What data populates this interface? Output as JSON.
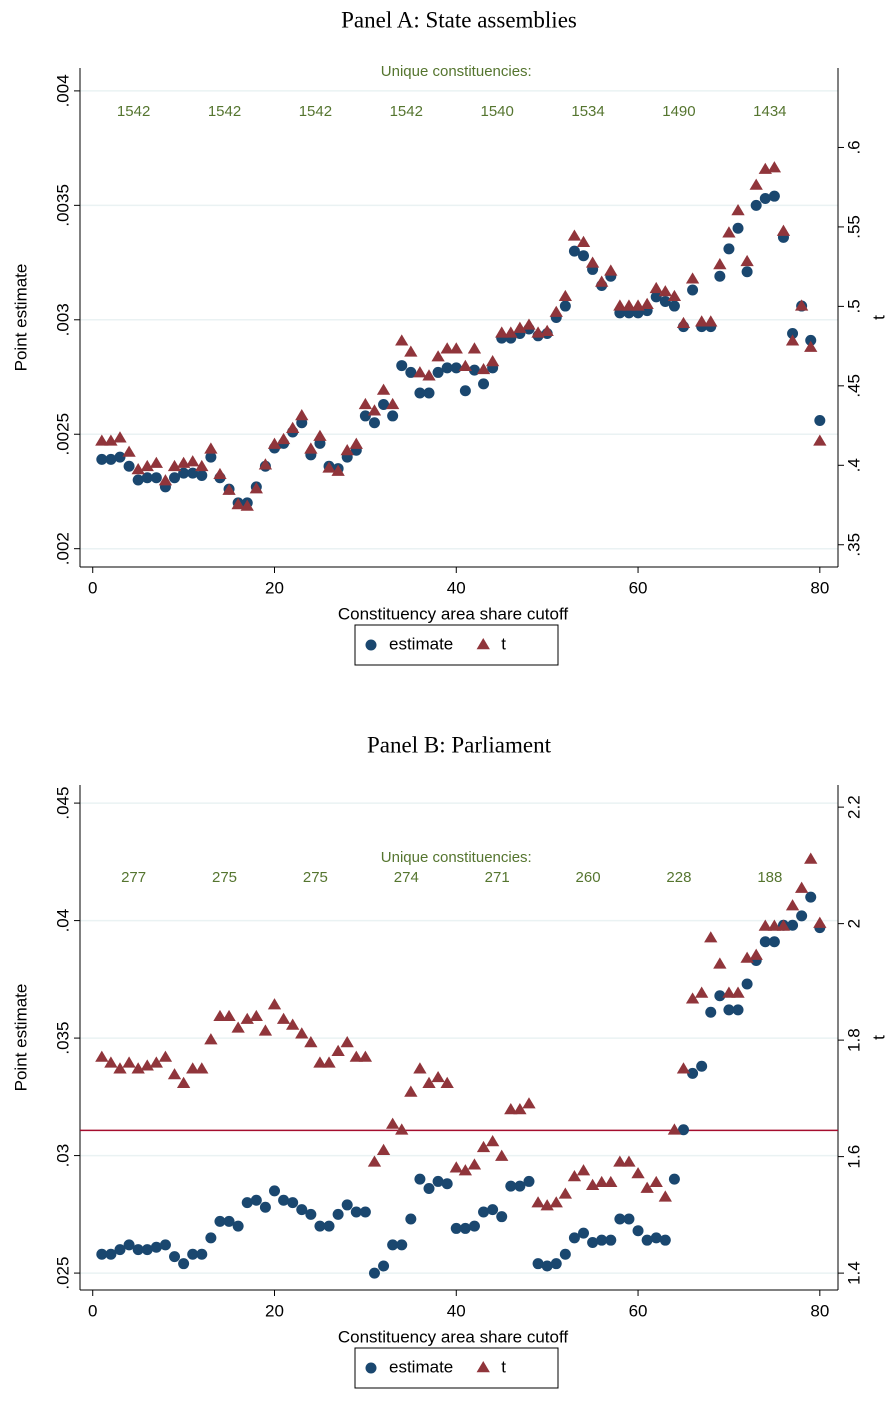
{
  "chart_data": [
    {
      "type": "scatter",
      "title": "Panel A: State assemblies",
      "xlabel": "Constituency area share cutoff",
      "ylabel": "Point estimate",
      "y2label": "t",
      "annotation_title": "Unique constituencies:",
      "annotation_labels": [
        "1542",
        "1542",
        "1542",
        "1542",
        "1540",
        "1534",
        "1490",
        "1434"
      ],
      "x": [
        1,
        2,
        3,
        4,
        5,
        6,
        7,
        8,
        9,
        10,
        11,
        12,
        13,
        14,
        15,
        16,
        17,
        18,
        19,
        20,
        21,
        22,
        23,
        24,
        25,
        26,
        27,
        28,
        29,
        30,
        31,
        32,
        33,
        34,
        35,
        36,
        37,
        38,
        39,
        40,
        41,
        42,
        43,
        44,
        45,
        46,
        47,
        48,
        49,
        50,
        51,
        52,
        53,
        54,
        55,
        56,
        57,
        58,
        59,
        60,
        61,
        62,
        63,
        64,
        65,
        66,
        67,
        68,
        69,
        70,
        71,
        72,
        73,
        74,
        75,
        76,
        77,
        78,
        79,
        80
      ],
      "series": [
        {
          "name": "estimate",
          "color": "#1a476f",
          "marker": "circle",
          "values": [
            0.00239,
            0.00239,
            0.0024,
            0.00236,
            0.0023,
            0.00231,
            0.00231,
            0.00227,
            0.00231,
            0.00233,
            0.00233,
            0.00232,
            0.0024,
            0.00231,
            0.00226,
            0.0022,
            0.0022,
            0.00227,
            0.00236,
            0.00244,
            0.00246,
            0.00251,
            0.00255,
            0.00241,
            0.00246,
            0.00236,
            0.00235,
            0.0024,
            0.00243,
            0.00258,
            0.00255,
            0.00263,
            0.00258,
            0.0028,
            0.00277,
            0.00268,
            0.00268,
            0.00277,
            0.00279,
            0.00279,
            0.00269,
            0.00278,
            0.00272,
            0.00279,
            0.00292,
            0.00292,
            0.00294,
            0.00296,
            0.00293,
            0.00294,
            0.00301,
            0.00306,
            0.0033,
            0.00328,
            0.00322,
            0.00315,
            0.00319,
            0.00303,
            0.00303,
            0.00303,
            0.00304,
            0.0031,
            0.00308,
            0.00306,
            0.00297,
            0.00313,
            0.00297,
            0.00297,
            0.00319,
            0.00331,
            0.0034,
            0.00321,
            0.0035,
            0.00353,
            0.00354,
            0.00336,
            0.00294,
            0.00306,
            0.00291,
            0.00256
          ]
        },
        {
          "name": "t",
          "color": "#90353b",
          "marker": "triangle",
          "axis": "y2",
          "values": [
            0.415,
            0.415,
            0.417,
            0.408,
            0.397,
            0.399,
            0.401,
            0.39,
            0.399,
            0.401,
            0.402,
            0.399,
            0.41,
            0.394,
            0.384,
            0.375,
            0.374,
            0.385,
            0.4,
            0.413,
            0.416,
            0.423,
            0.431,
            0.41,
            0.418,
            0.398,
            0.396,
            0.409,
            0.413,
            0.438,
            0.434,
            0.447,
            0.438,
            0.478,
            0.471,
            0.458,
            0.456,
            0.468,
            0.473,
            0.473,
            0.462,
            0.473,
            0.46,
            0.465,
            0.483,
            0.483,
            0.486,
            0.488,
            0.483,
            0.484,
            0.496,
            0.506,
            0.544,
            0.54,
            0.527,
            0.515,
            0.522,
            0.5,
            0.5,
            0.5,
            0.501,
            0.511,
            0.509,
            0.506,
            0.489,
            0.517,
            0.49,
            0.49,
            0.526,
            0.546,
            0.56,
            0.528,
            0.576,
            0.586,
            0.587,
            0.547,
            0.478,
            0.5,
            0.474,
            0.415
          ]
        }
      ],
      "xlim": [
        -1.4,
        82
      ],
      "xticks": [
        0,
        20,
        40,
        60,
        80
      ],
      "ylim": [
        0.00192,
        0.0041
      ],
      "yticks": [
        {
          "value": 0.002,
          "label": ".002"
        },
        {
          "value": 0.0025,
          "label": ".0025"
        },
        {
          "value": 0.003,
          "label": ".003"
        },
        {
          "value": 0.0035,
          "label": ".0035"
        },
        {
          "value": 0.004,
          "label": ".004"
        }
      ],
      "y2lim": [
        0.336,
        0.65
      ],
      "y2ticks": [
        {
          "value": 0.35,
          "label": ".35"
        },
        {
          "value": 0.4,
          "label": ".4"
        },
        {
          "value": 0.45,
          "label": ".45"
        },
        {
          "value": 0.5,
          "label": ".5"
        },
        {
          "value": 0.55,
          "label": ".55"
        },
        {
          "value": 0.6,
          "label": ".6"
        }
      ],
      "grid": true,
      "legend": "bottom"
    },
    {
      "type": "scatter",
      "title": "Panel B: Parliament",
      "xlabel": "Constituency area share cutoff",
      "ylabel": "Point estimate",
      "y2label": "t",
      "annotation_title": "Unique constituencies:",
      "annotation_labels": [
        "277",
        "275",
        "275",
        "274",
        "271",
        "260",
        "228",
        "188"
      ],
      "x": [
        1,
        2,
        3,
        4,
        5,
        6,
        7,
        8,
        9,
        10,
        11,
        12,
        13,
        14,
        15,
        16,
        17,
        18,
        19,
        20,
        21,
        22,
        23,
        24,
        25,
        26,
        27,
        28,
        29,
        30,
        31,
        32,
        33,
        34,
        35,
        36,
        37,
        38,
        39,
        40,
        41,
        42,
        43,
        44,
        45,
        46,
        47,
        48,
        49,
        50,
        51,
        52,
        53,
        54,
        55,
        56,
        57,
        58,
        59,
        60,
        61,
        62,
        63,
        64,
        65,
        66,
        67,
        68,
        69,
        70,
        71,
        72,
        73,
        74,
        75,
        76,
        77,
        78,
        79,
        80
      ],
      "series": [
        {
          "name": "estimate",
          "color": "#1a476f",
          "marker": "circle",
          "values": [
            0.0258,
            0.0258,
            0.026,
            0.0262,
            0.026,
            0.026,
            0.0261,
            0.0262,
            0.0257,
            0.0254,
            0.0258,
            0.0258,
            0.0265,
            0.0272,
            0.0272,
            0.027,
            0.028,
            0.0281,
            0.0278,
            0.0285,
            0.0281,
            0.028,
            0.0277,
            0.0275,
            0.027,
            0.027,
            0.0275,
            0.0279,
            0.0276,
            0.0276,
            0.025,
            0.0253,
            0.0262,
            0.0262,
            0.0273,
            0.029,
            0.0286,
            0.0289,
            0.0288,
            0.0269,
            0.0269,
            0.027,
            0.0276,
            0.0277,
            0.0274,
            0.0287,
            0.0287,
            0.0289,
            0.0254,
            0.0253,
            0.0254,
            0.0258,
            0.0265,
            0.0267,
            0.0263,
            0.0264,
            0.0264,
            0.0273,
            0.0273,
            0.0268,
            0.0264,
            0.0265,
            0.0264,
            0.029,
            0.0311,
            0.0335,
            0.0338,
            0.0361,
            0.0368,
            0.0362,
            0.0362,
            0.0373,
            0.0383,
            0.0391,
            0.0391,
            0.0398,
            0.0398,
            0.0402,
            0.041,
            0.0397
          ]
        },
        {
          "name": "t",
          "color": "#90353b",
          "marker": "triangle",
          "axis": "y2",
          "values": [
            1.77,
            1.76,
            1.75,
            1.76,
            1.75,
            1.755,
            1.76,
            1.77,
            1.74,
            1.725,
            1.75,
            1.75,
            1.8,
            1.84,
            1.84,
            1.82,
            1.835,
            1.84,
            1.815,
            1.86,
            1.835,
            1.825,
            1.81,
            1.795,
            1.76,
            1.76,
            1.78,
            1.795,
            1.77,
            1.77,
            1.59,
            1.61,
            1.655,
            1.645,
            1.71,
            1.75,
            1.725,
            1.735,
            1.725,
            1.58,
            1.575,
            1.585,
            1.615,
            1.625,
            1.6,
            1.68,
            1.68,
            1.69,
            1.52,
            1.515,
            1.52,
            1.535,
            1.565,
            1.575,
            1.55,
            1.555,
            1.555,
            1.59,
            1.59,
            1.57,
            1.545,
            1.555,
            1.53,
            1.645,
            1.75,
            1.87,
            1.88,
            1.975,
            1.93,
            1.88,
            1.88,
            1.94,
            1.945,
            1.995,
            1.995,
            1.995,
            2.03,
            2.06,
            2.11,
            2.0
          ]
        }
      ],
      "xlim": [
        -1.4,
        82
      ],
      "xticks": [
        0,
        20,
        40,
        60,
        80
      ],
      "ylim": [
        0.02428,
        0.04577
      ],
      "yticks": [
        {
          "value": 0.025,
          "label": ".025"
        },
        {
          "value": 0.03,
          "label": ".03"
        },
        {
          "value": 0.035,
          "label": ".035"
        },
        {
          "value": 0.04,
          "label": ".04"
        },
        {
          "value": 0.045,
          "label": ".045"
        }
      ],
      "y2lim": [
        1.371,
        2.238
      ],
      "y2ticks": [
        1.4,
        1.6,
        1.8,
        2,
        2.2
      ],
      "yline": {
        "value": 1.645,
        "axis": "y2",
        "color": "#a50d2e"
      },
      "grid": true,
      "legend": "bottom"
    }
  ]
}
